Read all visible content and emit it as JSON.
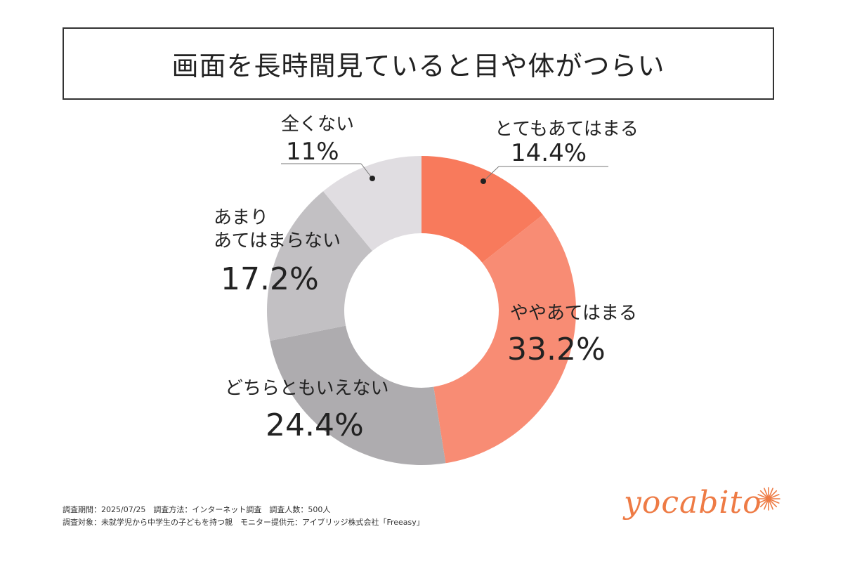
{
  "title": "画面を長時間見ていると目や体がつらい",
  "footer": {
    "line1": "調査期間：2025/07/25　調査方法：インターネット調査　調査人数：500人",
    "line2": "調査対象：未就学児から中学生の子どもを持つ親　モニター提供元：アイブリッジ株式会社「Freeasy」"
  },
  "logo": {
    "text": "yocabito",
    "color": "#ee7b45"
  },
  "chart_data": {
    "type": "pie",
    "donut": true,
    "title": "画面を長時間見ていると目や体がつらい",
    "legend": "none",
    "categories": [
      "とてもあてはまる",
      "ややあてはまる",
      "どちらともいえない",
      "あまりあてはまらない",
      "全くない"
    ],
    "values": [
      14.4,
      33.2,
      24.4,
      17.2,
      11
    ],
    "value_labels": [
      "14.4%",
      "33.2%",
      "24.4%",
      "17.2%",
      "11%"
    ],
    "colors": [
      "#f87a5c",
      "#f88c74",
      "#aeacaf",
      "#c2c0c3",
      "#e0dde1"
    ]
  },
  "labels": {
    "s0": {
      "cat": "とてもあてはまる",
      "pct": "14.4%"
    },
    "s1": {
      "cat": "ややあてはまる",
      "pct": "33.2%"
    },
    "s2": {
      "cat": "どちらともいえない",
      "pct": "24.4%"
    },
    "s3": {
      "cat1": "あまり",
      "cat2": "あてはまらない",
      "pct": "17.2%"
    },
    "s4": {
      "cat": "全くない",
      "pct": "11%"
    }
  }
}
